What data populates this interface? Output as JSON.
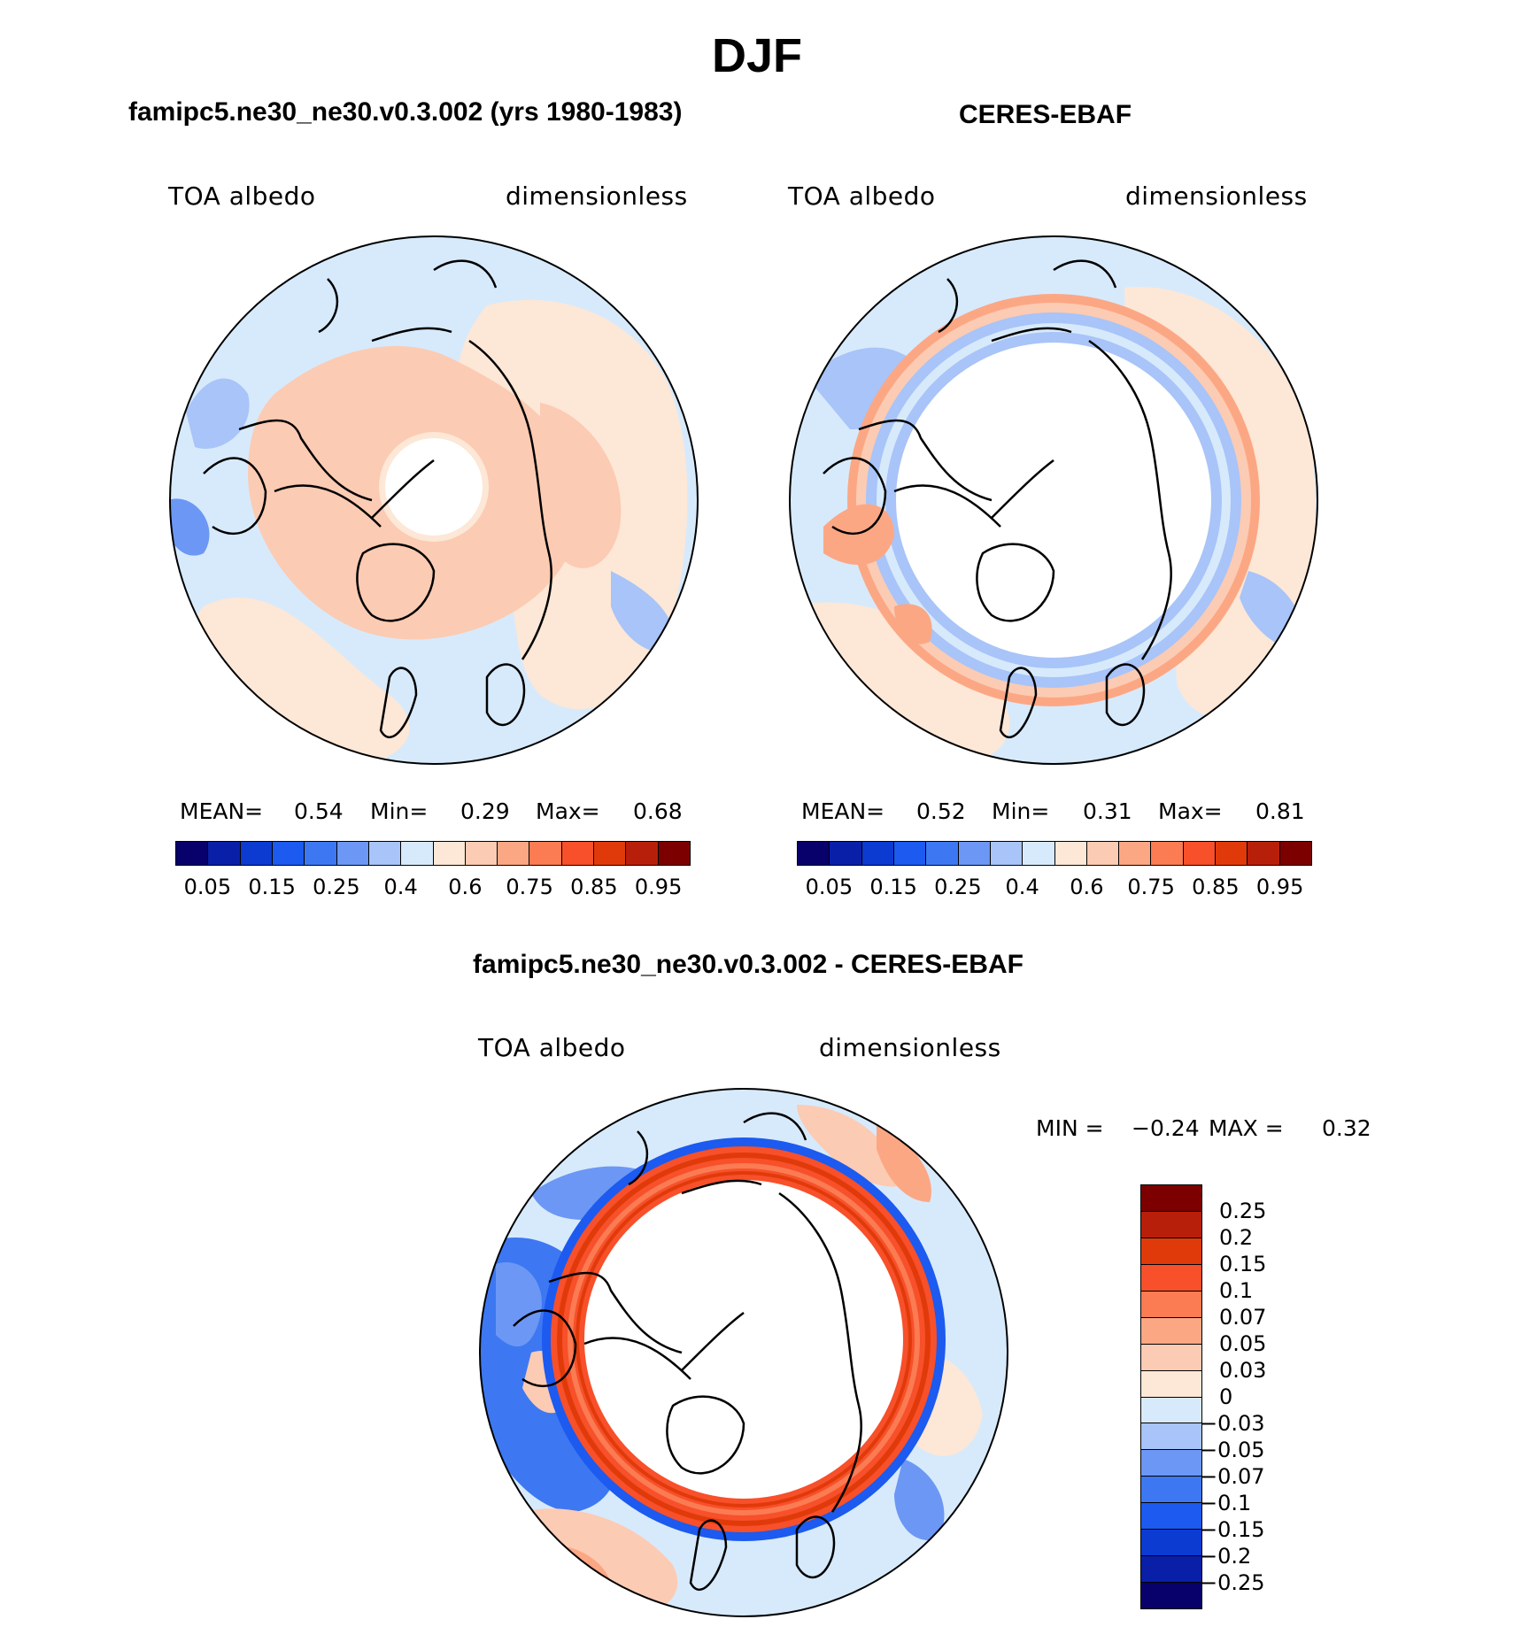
{
  "season": "DJF",
  "panels": {
    "model": {
      "title": "famipc5.ne30_ne30.v0.3.002 (yrs 1980-1983)",
      "left_label": "TOA albedo",
      "right_label": "dimensionless",
      "stats": {
        "mean_label": "MEAN=",
        "mean": "0.54",
        "min_label": "Min=",
        "min": "0.29",
        "max_label": "Max=",
        "max": "0.68"
      }
    },
    "obs": {
      "title": "CERES-EBAF",
      "left_label": "TOA albedo",
      "right_label": "dimensionless",
      "stats": {
        "mean_label": "MEAN=",
        "mean": "0.52",
        "min_label": "Min=",
        "min": "0.31",
        "max_label": "Max=",
        "max": "0.81"
      }
    },
    "diff": {
      "title": "famipc5.ne30_ne30.v0.3.002 - CERES-EBAF",
      "left_label": "TOA albedo",
      "right_label": "dimensionless",
      "stats": {
        "min_label": "MIN =",
        "min": "−0.24",
        "max_label": "MAX =",
        "max": "0.32"
      }
    }
  },
  "colorbar_abs": {
    "colors": [
      "#08006b",
      "#0a1fa8",
      "#0b3bd0",
      "#1c5af0",
      "#3d78f2",
      "#6c97f4",
      "#a8c4f8",
      "#d7eafc",
      "#fde7d6",
      "#fccbb3",
      "#fca784",
      "#fb7b52",
      "#f7502a",
      "#e13a0a",
      "#b81f0a",
      "#7c0000"
    ],
    "tick_labels": [
      "0.05",
      "0.15",
      "0.25",
      "0.4",
      "0.6",
      "0.75",
      "0.85",
      "0.95"
    ]
  },
  "colorbar_diff": {
    "colors": [
      "#7c0000",
      "#b81f0a",
      "#e13a0a",
      "#f7502a",
      "#fb7b52",
      "#fca784",
      "#fccbb3",
      "#fde7d6",
      "#d7eafc",
      "#a8c4f8",
      "#6c97f4",
      "#3d78f2",
      "#1c5af0",
      "#0b3bd0",
      "#0a1fa8",
      "#08006b"
    ],
    "tick_labels": [
      "0.25",
      "0.2",
      "0.15",
      "0.1",
      "0.07",
      "0.05",
      "0.03",
      "0",
      "−0.03",
      "−0.05",
      "−0.07",
      "−0.1",
      "−0.15",
      "−0.2",
      "−0.25"
    ]
  },
  "map_colors": {
    "blue_light": "#d7eafc",
    "blue_mid": "#a8c4f8",
    "blue_strong": "#6c97f4",
    "blue_deep": "#3d78f2",
    "peach": "#fde7d6",
    "salmon": "#fccbb3",
    "orange": "#fca784",
    "red": "#f7502a",
    "dark_red": "#e13a0a"
  }
}
